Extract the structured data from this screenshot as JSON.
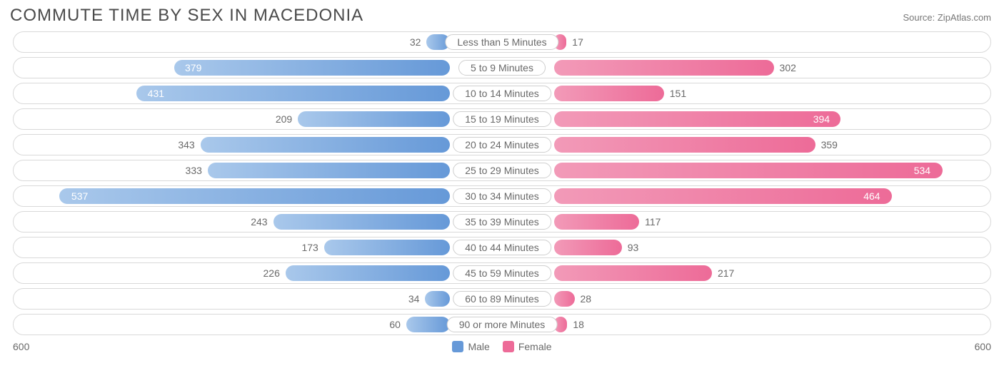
{
  "title": "COMMUTE TIME BY SEX IN MACEDONIA",
  "source": "Source: ZipAtlas.com",
  "axis_max": 600,
  "axis_label_left": "600",
  "axis_label_right": "600",
  "male_color_start": "#a9c8eb",
  "male_color_end": "#6699d8",
  "female_color_start": "#f29ab8",
  "female_color_end": "#ed6b98",
  "row_border_color": "#d9d9d9",
  "row_bg": "#ffffff",
  "text_color": "#696969",
  "title_color": "#4a4a4a",
  "center_label_border": "#cfcfcf",
  "label_on_threshold": 370,
  "center_label_halfwidth": 73,
  "legend": {
    "male_label": "Male",
    "female_label": "Female"
  },
  "rows": [
    {
      "label": "Less than 5 Minutes",
      "male": 32,
      "female": 17
    },
    {
      "label": "5 to 9 Minutes",
      "male": 379,
      "female": 302
    },
    {
      "label": "10 to 14 Minutes",
      "male": 431,
      "female": 151
    },
    {
      "label": "15 to 19 Minutes",
      "male": 209,
      "female": 394
    },
    {
      "label": "20 to 24 Minutes",
      "male": 343,
      "female": 359
    },
    {
      "label": "25 to 29 Minutes",
      "male": 333,
      "female": 534
    },
    {
      "label": "30 to 34 Minutes",
      "male": 537,
      "female": 464
    },
    {
      "label": "35 to 39 Minutes",
      "male": 243,
      "female": 117
    },
    {
      "label": "40 to 44 Minutes",
      "male": 173,
      "female": 93
    },
    {
      "label": "45 to 59 Minutes",
      "male": 226,
      "female": 217
    },
    {
      "label": "60 to 89 Minutes",
      "male": 34,
      "female": 28
    },
    {
      "label": "90 or more Minutes",
      "male": 60,
      "female": 18
    }
  ]
}
